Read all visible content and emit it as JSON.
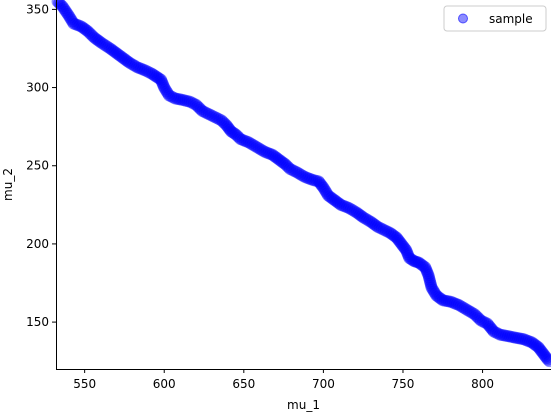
{
  "chart_data": {
    "type": "scatter",
    "xlabel": "mu_1",
    "ylabel": "mu_2",
    "xlim": [
      532,
      843
    ],
    "ylim": [
      120,
      356
    ],
    "xticks": [
      550,
      600,
      650,
      700,
      750,
      800
    ],
    "yticks": [
      150,
      200,
      250,
      300,
      350
    ],
    "grid": false,
    "legend_position": "top-right",
    "point_color": "#0000ff",
    "series": [
      {
        "name": "sample",
        "trace": [
          [
            533,
            355
          ],
          [
            536,
            352
          ],
          [
            540,
            346
          ],
          [
            543,
            341
          ],
          [
            548,
            339
          ],
          [
            552,
            336
          ],
          [
            556,
            332
          ],
          [
            560,
            329
          ],
          [
            566,
            325
          ],
          [
            570,
            322
          ],
          [
            574,
            319
          ],
          [
            578,
            316
          ],
          [
            583,
            313
          ],
          [
            588,
            311
          ],
          [
            592,
            309
          ],
          [
            595,
            307
          ],
          [
            598,
            305
          ],
          [
            600,
            300
          ],
          [
            603,
            295
          ],
          [
            607,
            293
          ],
          [
            612,
            292
          ],
          [
            616,
            291
          ],
          [
            620,
            289
          ],
          [
            624,
            285
          ],
          [
            628,
            283
          ],
          [
            632,
            281
          ],
          [
            636,
            279
          ],
          [
            639,
            276
          ],
          [
            642,
            272
          ],
          [
            645,
            270
          ],
          [
            648,
            267
          ],
          [
            653,
            265
          ],
          [
            658,
            262
          ],
          [
            663,
            259
          ],
          [
            668,
            257
          ],
          [
            672,
            254
          ],
          [
            676,
            251
          ],
          [
            679,
            248
          ],
          [
            683,
            246
          ],
          [
            688,
            243
          ],
          [
            693,
            241
          ],
          [
            697,
            240
          ],
          [
            700,
            236
          ],
          [
            703,
            231
          ],
          [
            707,
            228
          ],
          [
            711,
            225
          ],
          [
            716,
            223
          ],
          [
            721,
            220
          ],
          [
            725,
            217
          ],
          [
            730,
            214
          ],
          [
            734,
            211
          ],
          [
            738,
            209
          ],
          [
            742,
            207
          ],
          [
            746,
            204
          ],
          [
            749,
            200
          ],
          [
            752,
            196
          ],
          [
            754,
            191
          ],
          [
            757,
            189
          ],
          [
            760,
            188
          ],
          [
            764,
            185
          ],
          [
            766,
            180
          ],
          [
            768,
            172
          ],
          [
            771,
            167
          ],
          [
            775,
            164
          ],
          [
            780,
            163
          ],
          [
            785,
            161
          ],
          [
            790,
            158
          ],
          [
            795,
            155
          ],
          [
            799,
            151
          ],
          [
            803,
            149
          ],
          [
            807,
            144
          ],
          [
            811,
            142
          ],
          [
            816,
            141
          ],
          [
            821,
            140
          ],
          [
            826,
            139
          ],
          [
            831,
            137
          ],
          [
            835,
            134
          ],
          [
            838,
            130
          ],
          [
            841,
            126
          ],
          [
            843,
            124
          ]
        ]
      }
    ]
  }
}
